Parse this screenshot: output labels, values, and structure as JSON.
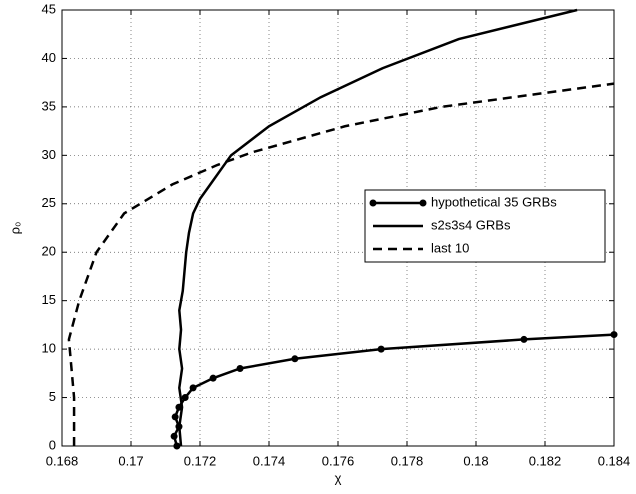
{
  "chart_data": {
    "type": "line",
    "x_label": "χ",
    "y_label": "ρ₀",
    "xlim": [
      0.168,
      0.184
    ],
    "xticks": [
      0.168,
      0.17,
      0.172,
      0.174,
      0.176,
      0.178,
      0.18,
      0.182,
      0.184
    ],
    "ylim": [
      0,
      45
    ],
    "yticks": [
      0,
      5,
      10,
      15,
      20,
      25,
      30,
      35,
      40,
      45
    ],
    "grid": true,
    "legend": "right",
    "series": [
      {
        "name": "hypothetical 35 GRBs",
        "color": "#000000",
        "style": "solid",
        "marker": true,
        "x": [
          0.17133,
          0.17125,
          0.17139,
          0.17128,
          0.17139,
          0.17157,
          0.1718,
          0.17238,
          0.17316,
          0.17475,
          0.17725,
          0.18139,
          0.184
        ],
        "values": [
          0,
          1,
          2,
          3,
          4,
          5,
          6,
          7,
          8,
          9,
          10,
          11,
          11.5
        ]
      },
      {
        "name": "s2s3s4 GRBs",
        "color": "#000000",
        "style": "solid",
        "marker": false,
        "x": [
          0.17145,
          0.1714,
          0.17148,
          0.1714,
          0.17148,
          0.1714,
          0.17145,
          0.1714,
          0.1715,
          0.17155,
          0.1716,
          0.17168,
          0.1718,
          0.172,
          0.1723,
          0.1729,
          0.174,
          0.1755,
          0.1773,
          0.1795,
          0.18293
        ],
        "values": [
          0,
          2,
          4,
          6,
          8,
          10,
          12,
          14,
          16,
          18,
          20,
          22,
          24,
          25.5,
          27,
          30,
          33,
          36,
          39,
          42,
          45
        ]
      },
      {
        "name": "last 10",
        "color": "#000000",
        "style": "dashed",
        "marker": false,
        "x": [
          0.16835,
          0.16835,
          0.1682,
          0.1685,
          0.169,
          0.1698,
          0.1712,
          0.1725,
          0.1735,
          0.1762,
          0.179,
          0.184
        ],
        "values": [
          0,
          5,
          11,
          15,
          20,
          24,
          27,
          29,
          30.3,
          33,
          35,
          37.4
        ]
      }
    ]
  }
}
